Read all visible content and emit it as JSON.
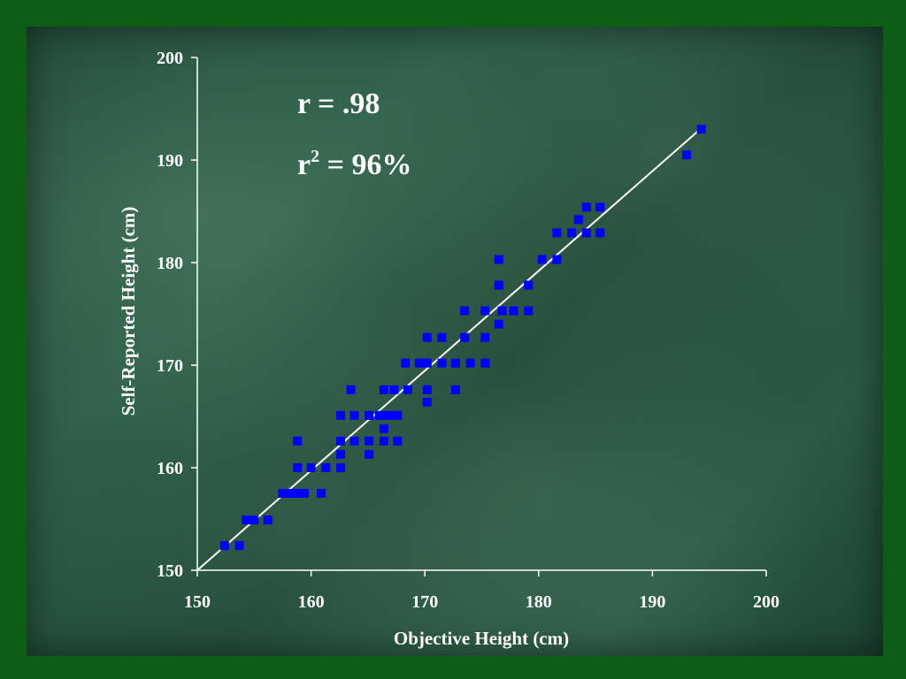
{
  "chart_data": {
    "type": "scatter",
    "title": "",
    "xlabel": "Objective Height (cm)",
    "ylabel": "Self-Reported Height (cm)",
    "xlim": [
      150,
      200
    ],
    "ylim": [
      150,
      200
    ],
    "xticks": [
      "150",
      "160",
      "170",
      "180",
      "190",
      "200"
    ],
    "yticks": [
      "150",
      "160",
      "170",
      "180",
      "190",
      "200"
    ],
    "annotations": {
      "r_text": "r = .98",
      "r2_base": "r",
      "r2_sup": "2",
      "r2_rest": " = 96%"
    },
    "colors": {
      "points": "#0000ff",
      "fit_line": "#ffffff",
      "axis": "#ffffff"
    },
    "fit_line": {
      "x": [
        150,
        194.5
      ],
      "y": [
        150,
        193.3
      ]
    },
    "points": [
      [
        152.4,
        152.4
      ],
      [
        153.7,
        152.4
      ],
      [
        154.3,
        154.9
      ],
      [
        155.0,
        154.9
      ],
      [
        156.2,
        154.9
      ],
      [
        157.5,
        157.5
      ],
      [
        158.1,
        157.5
      ],
      [
        158.8,
        157.5
      ],
      [
        159.4,
        157.5
      ],
      [
        160.9,
        157.5
      ],
      [
        158.8,
        160.0
      ],
      [
        160.0,
        160.0
      ],
      [
        161.3,
        160.0
      ],
      [
        162.6,
        160.0
      ],
      [
        162.6,
        161.3
      ],
      [
        165.1,
        161.3
      ],
      [
        158.8,
        162.6
      ],
      [
        162.6,
        162.6
      ],
      [
        163.8,
        162.6
      ],
      [
        165.1,
        162.6
      ],
      [
        166.4,
        162.6
      ],
      [
        167.6,
        162.6
      ],
      [
        166.4,
        163.8
      ],
      [
        162.6,
        165.1
      ],
      [
        163.8,
        165.1
      ],
      [
        165.1,
        165.1
      ],
      [
        166.0,
        165.1
      ],
      [
        166.4,
        165.1
      ],
      [
        167.0,
        165.1
      ],
      [
        167.6,
        165.1
      ],
      [
        170.2,
        166.4
      ],
      [
        163.5,
        167.6
      ],
      [
        166.4,
        167.6
      ],
      [
        167.3,
        167.6
      ],
      [
        168.5,
        167.6
      ],
      [
        170.2,
        167.6
      ],
      [
        172.7,
        167.6
      ],
      [
        168.3,
        170.2
      ],
      [
        169.5,
        170.2
      ],
      [
        170.2,
        170.2
      ],
      [
        171.5,
        170.2
      ],
      [
        172.7,
        170.2
      ],
      [
        174.0,
        170.2
      ],
      [
        175.3,
        170.2
      ],
      [
        170.2,
        172.7
      ],
      [
        171.5,
        172.7
      ],
      [
        173.5,
        172.7
      ],
      [
        175.3,
        172.7
      ],
      [
        176.5,
        174.0
      ],
      [
        173.5,
        175.3
      ],
      [
        175.3,
        175.3
      ],
      [
        176.8,
        175.3
      ],
      [
        177.8,
        175.3
      ],
      [
        179.1,
        175.3
      ],
      [
        176.5,
        177.8
      ],
      [
        179.1,
        177.8
      ],
      [
        176.5,
        180.3
      ],
      [
        180.3,
        180.3
      ],
      [
        181.6,
        180.3
      ],
      [
        181.6,
        182.9
      ],
      [
        182.9,
        182.9
      ],
      [
        184.2,
        182.9
      ],
      [
        185.4,
        182.9
      ],
      [
        183.5,
        184.2
      ],
      [
        184.2,
        185.4
      ],
      [
        185.4,
        185.4
      ],
      [
        193.0,
        190.5
      ],
      [
        194.3,
        193.0
      ]
    ]
  }
}
